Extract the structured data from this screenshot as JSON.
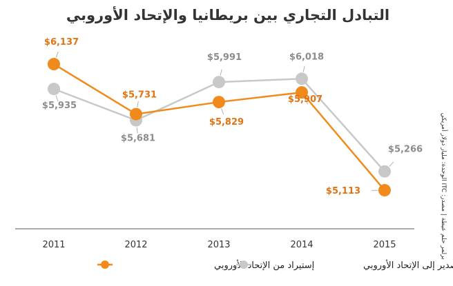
{
  "chart_data": {
    "type": "line",
    "title": "التبادل التجاري بين بريطانيا والإتحاد الأوروبي",
    "source_note": "برلمر حلم عيطة | مصدر: ITC الوحدة: مليار دولار أمريكي",
    "categories": [
      "2011",
      "2012",
      "2013",
      "2014",
      "2015"
    ],
    "ylim": [
      4800,
      6400
    ],
    "grid": false,
    "legend_position": "bottom",
    "value_prefix": "$",
    "series": [
      {
        "name": "تصدير إلى الإتحاد الأوروبي",
        "color": "#c8c8c8",
        "label_color": "#8c8c8c",
        "values": [
          5935,
          5681,
          5991,
          6018,
          5266
        ],
        "labels": [
          "$5,935",
          "$5,681",
          "$5,991",
          "$6,018",
          "$5,266"
        ]
      },
      {
        "name": "إستيراد من الإتحاد الأوروبي",
        "color": "#f08a1c",
        "label_color": "#e07412",
        "values": [
          6137,
          5731,
          5829,
          5907,
          5113
        ],
        "labels": [
          "$6,137",
          "$5,731",
          "$5,829",
          "$5,907",
          "$5,113"
        ]
      }
    ]
  }
}
